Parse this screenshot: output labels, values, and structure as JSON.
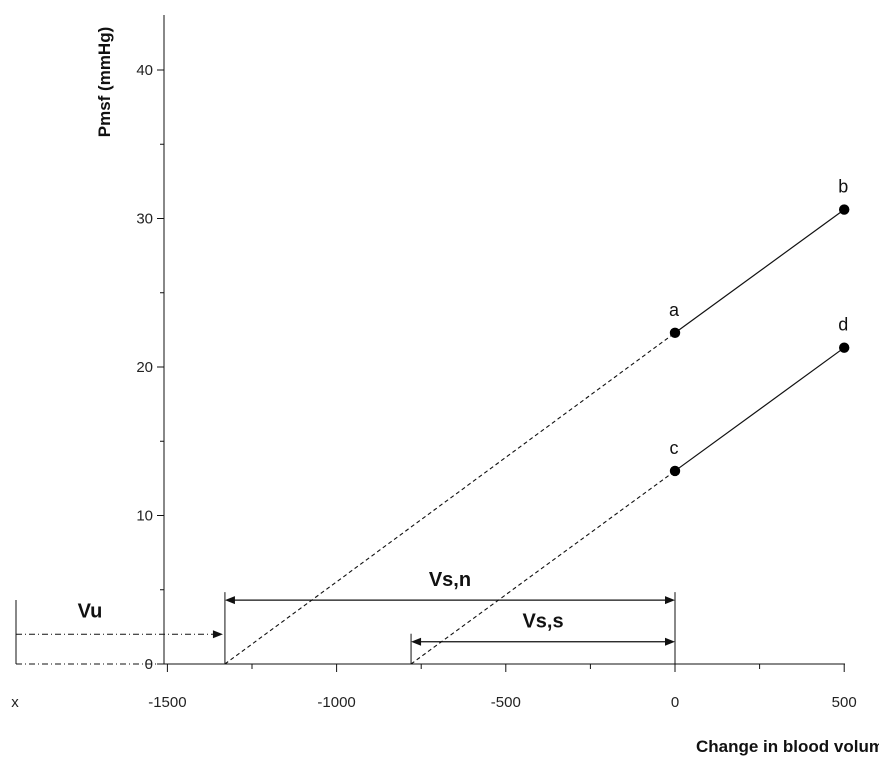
{
  "chart_data": {
    "type": "line",
    "title": "",
    "xlabel": "Change in blood volume (ml)",
    "ylabel": "Pmsf (mmHg)",
    "xlim": [
      -1500,
      500
    ],
    "ylim": [
      0,
      40
    ],
    "x_ticks": [
      -1500,
      -1000,
      -500,
      0,
      500
    ],
    "y_ticks": [
      0,
      10,
      20,
      30,
      40
    ],
    "x_extra_label": "x",
    "grid": false,
    "series": [
      {
        "points": [
          {
            "label": "a",
            "x": 0,
            "y": 22.3
          },
          {
            "label": "b",
            "x": 500,
            "y": 30.6
          }
        ],
        "extrapolated_to": {
          "x": -1330,
          "y": 0
        }
      },
      {
        "points": [
          {
            "label": "c",
            "x": 0,
            "y": 13
          },
          {
            "label": "d",
            "x": 500,
            "y": 21.3
          }
        ],
        "extrapolated_to": {
          "x": -780,
          "y": 0
        }
      }
    ],
    "annotations": [
      {
        "label": "Vs,n",
        "from_x": -1330,
        "to_x": 0,
        "at_y": 4.3
      },
      {
        "label": "Vs,s",
        "from_x": -780,
        "to_x": 0,
        "at_y": 1.5
      },
      {
        "label": "Vu",
        "from_x": -1900,
        "to_x": -1330,
        "at_y": 2
      }
    ]
  }
}
